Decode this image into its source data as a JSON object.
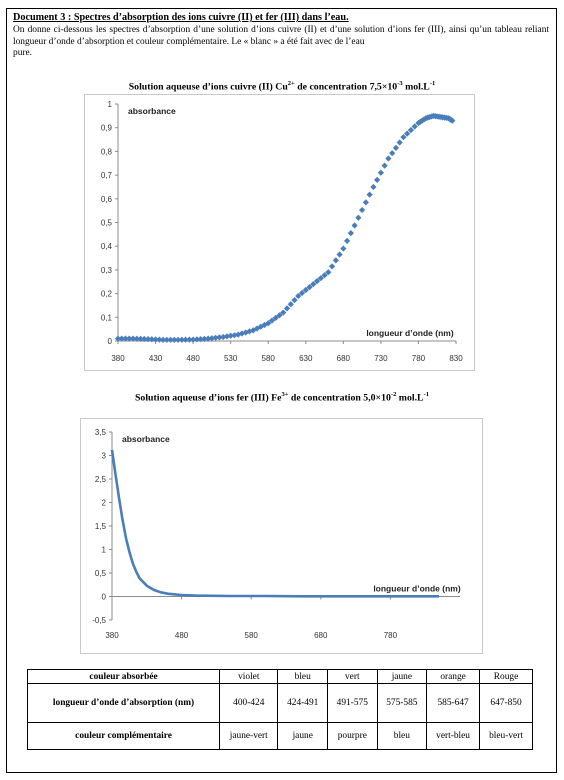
{
  "document": {
    "title": "Document 3 : Spectres d’absorption des ions cuivre (II) et fer (III) dans l’eau.",
    "intro": "On donne ci-dessous les spectres d’absorption d’une solution d’ions cuivre (II) et d’une solution d’ions fer (III), ainsi qu’un tableau reliant longueur d’onde d’absorption et couleur complémentaire. Le « blanc » a été fait avec de l’eau",
    "intro_end": "pure."
  },
  "chart_data": [
    {
      "type": "scatter",
      "title_parts": {
        "prefix": "Solution aqueuse d’ions cuivre (II) Cu",
        "prefix_sup": "2+",
        "middle": " de concentration 7,5×10",
        "middle_sup": "-3",
        "suffix": " mol.L",
        "suffix_sup": "-1"
      },
      "ylabel": "absorbance",
      "xlabel": "longueur d’onde (nm)",
      "xlim": [
        380,
        830
      ],
      "ylim": [
        0,
        1
      ],
      "xticks": [
        "380",
        "430",
        "480",
        "530",
        "580",
        "630",
        "680",
        "730",
        "780",
        "830"
      ],
      "yticks": [
        "0",
        "0,1",
        "0,2",
        "0,3",
        "0,4",
        "0,5",
        "0,6",
        "0,7",
        "0,8",
        "0,9",
        "1"
      ],
      "color": "#4a7ebb",
      "series": [
        {
          "x": [
            380,
            400,
            420,
            440,
            460,
            480,
            500,
            520,
            540,
            560,
            580,
            600,
            620,
            640,
            660,
            680,
            700,
            720,
            740,
            760,
            780,
            790,
            800,
            810,
            820,
            825
          ],
          "y": [
            0.01,
            0.01,
            0.008,
            0.005,
            0.005,
            0.006,
            0.01,
            0.017,
            0.027,
            0.045,
            0.075,
            0.12,
            0.19,
            0.24,
            0.29,
            0.39,
            0.52,
            0.65,
            0.77,
            0.86,
            0.92,
            0.94,
            0.95,
            0.945,
            0.94,
            0.93
          ]
        }
      ]
    },
    {
      "type": "line",
      "title_parts": {
        "prefix": "Solution aqueuse d’ions fer (III) Fe",
        "prefix_sup": "3+",
        "middle": " de concentration 5,0×10",
        "middle_sup": "-2",
        "suffix": " mol.L",
        "suffix_sup": "-1"
      },
      "ylabel": "absorbance",
      "xlabel": "longueur d’onde (nm)",
      "xlim": [
        380,
        880
      ],
      "ylim": [
        -0.5,
        3.5
      ],
      "xticks": [
        "380",
        "480",
        "580",
        "680",
        "780"
      ],
      "yticks": [
        "-0,5",
        "0",
        "0,5",
        "1",
        "1,5",
        "2",
        "2,5",
        "3",
        "3,5"
      ],
      "color": "#4a7ebb",
      "series": [
        {
          "x": [
            380,
            385,
            390,
            395,
            400,
            405,
            410,
            415,
            420,
            430,
            440,
            450,
            460,
            480,
            500,
            550,
            600,
            650,
            700,
            750,
            800,
            850
          ],
          "y": [
            3.12,
            2.6,
            2.1,
            1.65,
            1.25,
            0.95,
            0.7,
            0.52,
            0.38,
            0.23,
            0.14,
            0.09,
            0.06,
            0.03,
            0.02,
            0.01,
            0.01,
            0.005,
            0.005,
            0.005,
            0.005,
            0.005
          ]
        }
      ]
    }
  ],
  "table": {
    "row1": {
      "header": "couleur absorbée",
      "cells": [
        "violet",
        "bleu",
        "vert",
        "jaune",
        "orange",
        "Rouge"
      ]
    },
    "row2": {
      "header": "longueur d’onde d’absorption (nm)",
      "cells": [
        "400-424",
        "424-491",
        "491-575",
        "575-585",
        "585-647",
        "647-850"
      ]
    },
    "row3": {
      "header": "couleur complémentaire",
      "cells": [
        "jaune-vert",
        "jaune",
        "pourpre",
        "bleu",
        "vert-bleu",
        "bleu-vert"
      ]
    }
  }
}
